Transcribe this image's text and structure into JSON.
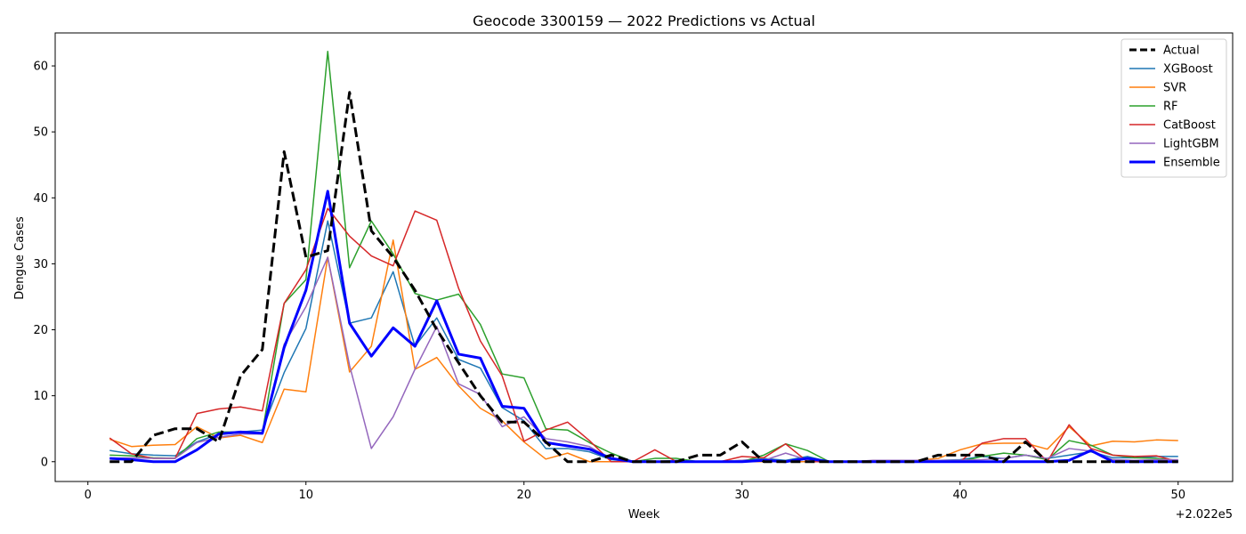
{
  "chart_data": {
    "type": "line",
    "title": "Geocode 3300159 — 2022 Predictions vs Actual",
    "xlabel": "Week",
    "ylabel": "Dengue Cases",
    "x_offset_label": "+2.022e5",
    "xlim": [
      -1.5,
      52.5
    ],
    "ylim": [
      -3,
      65
    ],
    "xticks": [
      0,
      10,
      20,
      30,
      40,
      50
    ],
    "yticks": [
      0,
      10,
      20,
      30,
      40,
      50,
      60
    ],
    "grid": false,
    "legend_position": "top-right",
    "x": [
      1,
      2,
      3,
      4,
      5,
      6,
      7,
      8,
      9,
      10,
      11,
      12,
      13,
      14,
      15,
      16,
      17,
      18,
      19,
      20,
      21,
      22,
      23,
      24,
      25,
      26,
      27,
      28,
      29,
      30,
      31,
      32,
      33,
      34,
      35,
      36,
      37,
      38,
      39,
      40,
      41,
      42,
      43,
      44,
      45,
      46,
      47,
      48,
      49,
      50
    ],
    "series": [
      {
        "name": "Actual",
        "color": "#000000",
        "dashed": true,
        "width": 3,
        "values": [
          0,
          0,
          4,
          5,
          5,
          3,
          13,
          17,
          47,
          31,
          32,
          56,
          35,
          31,
          26,
          20,
          15,
          10,
          6,
          6,
          3,
          0,
          0,
          1,
          0,
          0,
          0,
          1,
          1,
          3,
          0,
          0,
          0,
          0,
          0,
          0,
          0,
          0,
          1,
          1,
          1,
          0,
          3,
          0,
          0,
          0,
          0,
          0,
          0,
          0
        ]
      },
      {
        "name": "XGBoost",
        "color": "#1f77b4",
        "dashed": false,
        "width": 1.5,
        "values": [
          1.7,
          1.2,
          1,
          0.9,
          3,
          4.2,
          4.5,
          4.8,
          13.5,
          20.2,
          36.5,
          21,
          21.8,
          28.8,
          17.5,
          21.8,
          15.5,
          14.2,
          8.2,
          6.2,
          2,
          2,
          1.5,
          0.3,
          0,
          0,
          0.2,
          0,
          0,
          0.2,
          0.5,
          0.2,
          0.8,
          0,
          0,
          0,
          0,
          0,
          0.2,
          0.3,
          0.8,
          0.5,
          1,
          0.5,
          1,
          1.5,
          0.6,
          0.6,
          0.8,
          0.8
        ]
      },
      {
        "name": "SVR",
        "color": "#ff7f0e",
        "dashed": false,
        "width": 1.5,
        "values": [
          3.4,
          2.3,
          2.5,
          2.6,
          5.3,
          3.6,
          4,
          2.9,
          11,
          10.6,
          31,
          13.6,
          17.5,
          33.6,
          14,
          15.8,
          11.5,
          8.1,
          6.2,
          3,
          0.4,
          1.3,
          0,
          0,
          0,
          0,
          0,
          0,
          0,
          0,
          0,
          0,
          0,
          0,
          0,
          0,
          0,
          0.2,
          0.5,
          1.8,
          2.7,
          2.8,
          2.8,
          1.9,
          5.3,
          2.4,
          3.1,
          3,
          3.3,
          3.2
        ]
      },
      {
        "name": "RF",
        "color": "#2ca02c",
        "dashed": false,
        "width": 1.5,
        "values": [
          1,
          0.9,
          0.6,
          0.5,
          3.5,
          4.5,
          4.5,
          4.4,
          24,
          27.6,
          62.2,
          29.4,
          36.5,
          31.5,
          25.5,
          24.5,
          25.4,
          20.8,
          13.3,
          12.7,
          5,
          4.8,
          2.9,
          1.3,
          0,
          0.5,
          0.5,
          0,
          0,
          0,
          1,
          2.7,
          1.7,
          0,
          0,
          0,
          0,
          0,
          0,
          0,
          0.8,
          1.3,
          1,
          0.3,
          3.2,
          2.5,
          1,
          0.6,
          0.5,
          0.2
        ]
      },
      {
        "name": "CatBoost",
        "color": "#d62728",
        "dashed": false,
        "width": 1.5,
        "values": [
          3.6,
          1.2,
          0.5,
          0.5,
          7.3,
          8,
          8.3,
          7.7,
          24,
          29.1,
          38.4,
          34.2,
          31.2,
          29.7,
          38,
          36.6,
          26.3,
          18.3,
          13,
          3.1,
          4.8,
          6,
          3.2,
          0,
          0,
          1.8,
          0,
          0,
          0,
          0.8,
          0.6,
          2.7,
          0,
          0,
          0,
          0,
          0,
          0,
          0,
          0,
          2.8,
          3.5,
          3.5,
          0,
          5.6,
          2,
          1,
          0.8,
          0.9,
          0
        ]
      },
      {
        "name": "LightGBM",
        "color": "#9467bd",
        "dashed": false,
        "width": 1.5,
        "values": [
          0.5,
          0.6,
          0.5,
          0.5,
          2.9,
          3.7,
          4.2,
          4.2,
          17.8,
          23.5,
          31,
          14.6,
          2,
          6.8,
          14,
          20.5,
          11.8,
          10.2,
          5.3,
          6.8,
          3.5,
          3,
          2.3,
          0.4,
          0,
          0,
          0,
          0,
          0,
          0.2,
          0.2,
          1.3,
          0.3,
          0,
          0,
          0.2,
          0.2,
          0.2,
          0.2,
          0.2,
          0.3,
          0.5,
          1,
          0.5,
          2,
          1.6,
          0.3,
          0.2,
          0.3,
          0.3
        ]
      },
      {
        "name": "Ensemble",
        "color": "#0000ff",
        "dashed": false,
        "width": 3,
        "values": [
          0.5,
          0.3,
          0,
          0,
          1.8,
          4.2,
          4.5,
          4.3,
          17.3,
          26,
          41,
          21,
          16,
          20.3,
          17.5,
          24.4,
          16.3,
          15.7,
          8.4,
          8.1,
          2.9,
          2.4,
          1.9,
          0.5,
          0,
          0,
          0,
          0,
          0,
          0,
          0.2,
          0,
          0.5,
          0,
          0,
          0,
          0,
          0,
          0,
          0,
          0,
          0,
          0,
          0,
          0.2,
          1.7,
          0,
          0,
          0,
          0
        ]
      }
    ]
  }
}
